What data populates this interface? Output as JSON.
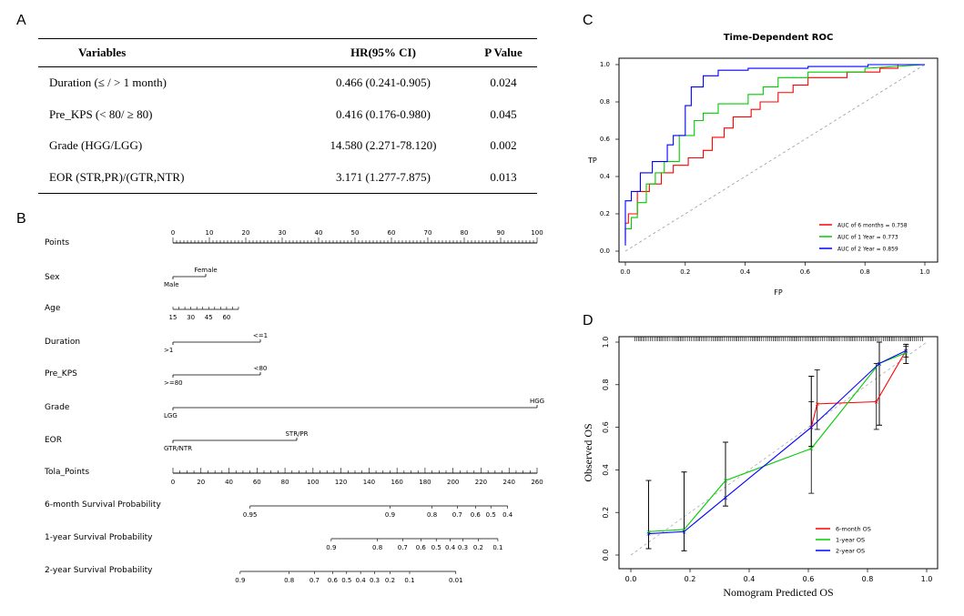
{
  "panels": {
    "a": "A",
    "b": "B",
    "c": "C",
    "d": "D"
  },
  "table": {
    "headers": [
      "Variables",
      "HR(95% CI)",
      "P Value"
    ],
    "rows": [
      [
        "Duration (≤ / > 1 month)",
        "0.466 (0.241-0.905)",
        "0.024"
      ],
      [
        "Pre_KPS (< 80/ ≥ 80)",
        "0.416 (0.176-0.980)",
        "0.045"
      ],
      [
        "Grade (HGG/LGG)",
        "14.580 (2.271-78.120)",
        "0.002"
      ],
      [
        "EOR (STR,PR)/(GTR,NTR)",
        "3.171 (1.277-7.875)",
        "0.013"
      ]
    ]
  },
  "nomogram": {
    "rows": [
      {
        "label": "Points",
        "kind": "scale",
        "domain": [
          0,
          100
        ],
        "ticks": [
          "0",
          "10",
          "20",
          "30",
          "40",
          "50",
          "60",
          "70",
          "80",
          "90",
          "100"
        ],
        "minor": 1
      },
      {
        "label": "Sex",
        "kind": "var",
        "points": 9,
        "start_label": "Male",
        "end_label": "Female"
      },
      {
        "label": "Age",
        "kind": "age",
        "ticks": [
          "15",
          "30",
          "45",
          "60"
        ],
        "range": [
          15,
          70
        ]
      },
      {
        "label": "Duration",
        "kind": "var",
        "points": 24,
        "start_label": ">1",
        "end_label": "<=1"
      },
      {
        "label": "Pre_KPS",
        "kind": "var",
        "points": 24,
        "start_label": ">=80",
        "end_label": "<80"
      },
      {
        "label": "Grade",
        "kind": "var",
        "points": 100,
        "start_label": "LGG",
        "end_label": "HGG"
      },
      {
        "label": "EOR",
        "kind": "var",
        "points": 34,
        "start_label": "GTR/NTR",
        "end_label": "STR/PR"
      },
      {
        "label": "Tola_Points",
        "kind": "total",
        "domain": [
          0,
          260
        ],
        "ticks": [
          "0",
          "20",
          "40",
          "60",
          "80",
          "100",
          "120",
          "140",
          "160",
          "180",
          "200",
          "220",
          "240",
          "260"
        ]
      },
      {
        "label": "6-month Survival Probability",
        "kind": "prob",
        "ticks": [
          {
            "t": "0.95",
            "at": 55
          },
          {
            "t": "0.9",
            "at": 155
          },
          {
            "t": "0.8",
            "at": 185
          },
          {
            "t": "0.7",
            "at": 203
          },
          {
            "t": "0.6",
            "at": 216
          },
          {
            "t": "0.5",
            "at": 227
          },
          {
            "t": "0.4",
            "at": 239
          }
        ]
      },
      {
        "label": "1-year Survival Probability",
        "kind": "prob",
        "ticks": [
          {
            "t": "0.9",
            "at": 113
          },
          {
            "t": "0.8",
            "at": 146
          },
          {
            "t": "0.7",
            "at": 164
          },
          {
            "t": "0.6",
            "at": 177
          },
          {
            "t": "0.5",
            "at": 188
          },
          {
            "t": "0.4",
            "at": 198
          },
          {
            "t": "0.3",
            "at": 207
          },
          {
            "t": "0.2",
            "at": 218
          },
          {
            "t": "0.1",
            "at": 232
          }
        ]
      },
      {
        "label": "2-year Survival Probability",
        "kind": "prob",
        "ticks": [
          {
            "t": "0.9",
            "at": 48
          },
          {
            "t": "0.8",
            "at": 83
          },
          {
            "t": "0.7",
            "at": 101
          },
          {
            "t": "0.6",
            "at": 114
          },
          {
            "t": "0.5",
            "at": 124
          },
          {
            "t": "0.4",
            "at": 134
          },
          {
            "t": "0.3",
            "at": 144
          },
          {
            "t": "0.2",
            "at": 155
          },
          {
            "t": "0.1",
            "at": 169
          },
          {
            "t": "0.01",
            "at": 202
          }
        ]
      }
    ]
  },
  "chart_data": [
    {
      "type": "line",
      "title": "Time-Dependent ROC",
      "xlabel": "FP",
      "ylabel": "TP",
      "xlim": [
        0,
        1
      ],
      "ylim": [
        0,
        1
      ],
      "ticks": [
        "0.0",
        "0.2",
        "0.4",
        "0.6",
        "0.8",
        "1.0"
      ],
      "diagonal": true,
      "legend_position": "bottom-right",
      "series": [
        {
          "name": "AUC of 6 months = 0.758",
          "color": "#ff0000",
          "x": [
            0,
            0,
            0.01,
            0.01,
            0.04,
            0.04,
            0.08,
            0.08,
            0.12,
            0.12,
            0.16,
            0.16,
            0.21,
            0.21,
            0.26,
            0.26,
            0.29,
            0.29,
            0.33,
            0.33,
            0.36,
            0.36,
            0.42,
            0.42,
            0.45,
            0.45,
            0.51,
            0.51,
            0.56,
            0.56,
            0.61,
            0.61,
            0.74,
            0.74,
            0.85,
            0.85,
            0.91,
            0.91,
            1.0
          ],
          "y": [
            0.05,
            0.15,
            0.15,
            0.2,
            0.2,
            0.32,
            0.32,
            0.36,
            0.36,
            0.42,
            0.42,
            0.46,
            0.46,
            0.5,
            0.5,
            0.54,
            0.54,
            0.61,
            0.61,
            0.66,
            0.66,
            0.72,
            0.72,
            0.76,
            0.76,
            0.8,
            0.8,
            0.85,
            0.85,
            0.89,
            0.89,
            0.93,
            0.93,
            0.96,
            0.96,
            0.98,
            0.98,
            1.0,
            1.0
          ]
        },
        {
          "name": "AUC of 1 Year = 0.773",
          "color": "#00cc00",
          "x": [
            0,
            0,
            0.02,
            0.02,
            0.04,
            0.04,
            0.07,
            0.07,
            0.1,
            0.1,
            0.13,
            0.13,
            0.18,
            0.18,
            0.23,
            0.23,
            0.26,
            0.26,
            0.31,
            0.31,
            0.41,
            0.41,
            0.46,
            0.46,
            0.51,
            0.51,
            0.61,
            0.61,
            0.8,
            0.8,
            1.0
          ],
          "y": [
            0.08,
            0.12,
            0.12,
            0.18,
            0.18,
            0.26,
            0.26,
            0.36,
            0.36,
            0.42,
            0.42,
            0.48,
            0.48,
            0.62,
            0.62,
            0.7,
            0.7,
            0.74,
            0.74,
            0.79,
            0.79,
            0.84,
            0.84,
            0.88,
            0.88,
            0.93,
            0.93,
            0.96,
            0.96,
            0.98,
            1.0
          ]
        },
        {
          "name": "AUC of 2 Year = 0.859",
          "color": "#0000ff",
          "x": [
            0,
            0,
            0.02,
            0.02,
            0.05,
            0.05,
            0.09,
            0.09,
            0.14,
            0.14,
            0.16,
            0.16,
            0.2,
            0.2,
            0.22,
            0.22,
            0.26,
            0.26,
            0.31,
            0.31,
            0.41,
            0.41,
            0.61,
            0.61,
            0.81,
            0.81,
            1.0
          ],
          "y": [
            0.03,
            0.27,
            0.27,
            0.32,
            0.32,
            0.42,
            0.42,
            0.48,
            0.48,
            0.57,
            0.57,
            0.62,
            0.62,
            0.78,
            0.78,
            0.88,
            0.88,
            0.94,
            0.94,
            0.97,
            0.97,
            0.98,
            0.98,
            0.99,
            0.99,
            1.0,
            1.0
          ]
        }
      ]
    },
    {
      "type": "line",
      "xlabel": "Nomogram Predicted OS",
      "ylabel": "Observed OS",
      "xlim": [
        0,
        1
      ],
      "ylim": [
        0,
        1
      ],
      "ticks": [
        "0.0",
        "0.2",
        "0.4",
        "0.6",
        "0.8",
        "1.0"
      ],
      "diagonal": true,
      "legend_position": "bottom-right",
      "series": [
        {
          "name": "6-month OS",
          "color": "#ff0000",
          "x": [
            0.61,
            0.63,
            0.83,
            0.93
          ],
          "y": [
            0.6,
            0.71,
            0.72,
            0.96
          ],
          "lo": [
            0.51,
            0.59,
            0.59,
            0.93
          ],
          "hi": [
            0.72,
            0.87,
            0.9,
            0.98
          ]
        },
        {
          "name": "1-year OS",
          "color": "#00cc00",
          "x": [
            0.06,
            0.18,
            0.32,
            0.61,
            0.84,
            0.93
          ],
          "y": [
            0.11,
            0.12,
            0.35,
            0.5,
            0.9,
            0.95
          ],
          "lo": [
            0.03,
            0.02,
            0.23,
            0.29,
            0.61,
            0.9
          ],
          "hi": [
            0.35,
            0.39,
            0.53,
            0.84,
            1.0,
            0.99
          ]
        },
        {
          "name": "2-year OS",
          "color": "#0000ff",
          "x": [
            0.06,
            0.18,
            0.32,
            0.61,
            0.84,
            0.93
          ],
          "y": [
            0.1,
            0.11,
            0.27,
            0.6,
            0.9,
            0.96
          ],
          "lo": [
            0.03,
            0.02,
            0.23,
            0.51,
            0.61,
            0.9
          ],
          "hi": [
            0.35,
            0.39,
            0.53,
            0.84,
            1.0,
            0.99
          ]
        }
      ]
    }
  ]
}
